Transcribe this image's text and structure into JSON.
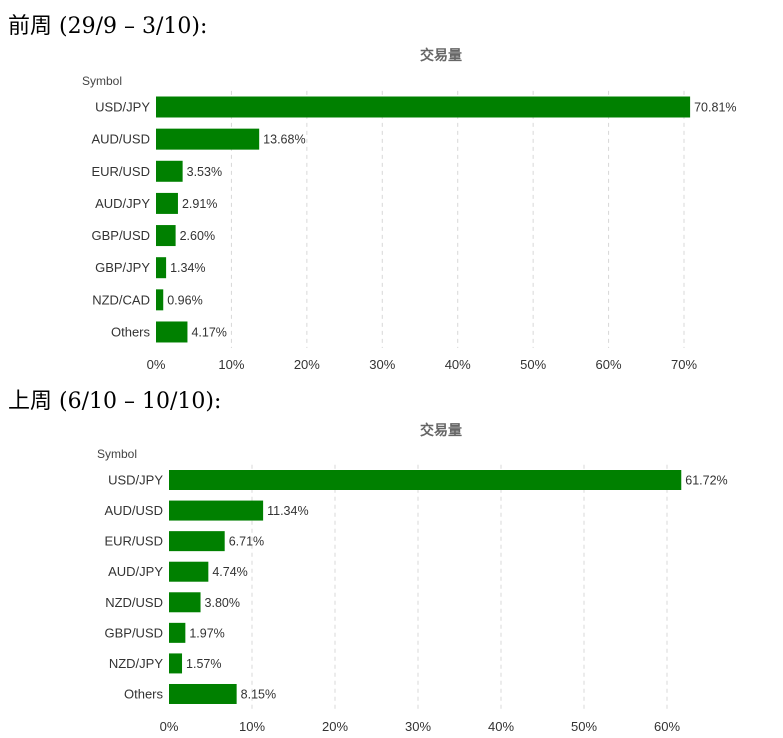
{
  "sections": [
    {
      "heading": "前周 (29/9 – 3/10):"
    },
    {
      "heading": "上周 (6/10 – 10/10):"
    }
  ],
  "chart_data": [
    {
      "type": "bar",
      "orientation": "horizontal",
      "title": "交易量",
      "ylabel": "Symbol",
      "categories": [
        "USD/JPY",
        "AUD/USD",
        "EUR/USD",
        "AUD/JPY",
        "GBP/USD",
        "GBP/JPY",
        "NZD/CAD",
        "Others"
      ],
      "values": [
        70.81,
        13.68,
        3.53,
        2.91,
        2.6,
        1.34,
        0.96,
        4.17
      ],
      "data_labels": [
        "70.81%",
        "13.68%",
        "3.53%",
        "2.91%",
        "2.60%",
        "1.34%",
        "0.96%",
        "4.17%"
      ],
      "xlim": [
        0,
        70
      ],
      "xticks": [
        "0%",
        "10%",
        "20%",
        "30%",
        "40%",
        "50%",
        "60%",
        "70%"
      ],
      "bar_color": "#008000",
      "grid": true
    },
    {
      "type": "bar",
      "orientation": "horizontal",
      "title": "交易量",
      "ylabel": "Symbol",
      "categories": [
        "USD/JPY",
        "AUD/USD",
        "EUR/USD",
        "AUD/JPY",
        "NZD/USD",
        "GBP/USD",
        "NZD/JPY",
        "Others"
      ],
      "values": [
        61.72,
        11.34,
        6.71,
        4.74,
        3.8,
        1.97,
        1.57,
        8.15
      ],
      "data_labels": [
        "61.72%",
        "11.34%",
        "6.71%",
        "4.74%",
        "3.80%",
        "1.97%",
        "1.57%",
        "8.15%"
      ],
      "xlim": [
        0,
        60
      ],
      "xticks": [
        "0%",
        "10%",
        "20%",
        "30%",
        "40%",
        "50%",
        "60%"
      ],
      "bar_color": "#008000",
      "grid": true
    }
  ]
}
